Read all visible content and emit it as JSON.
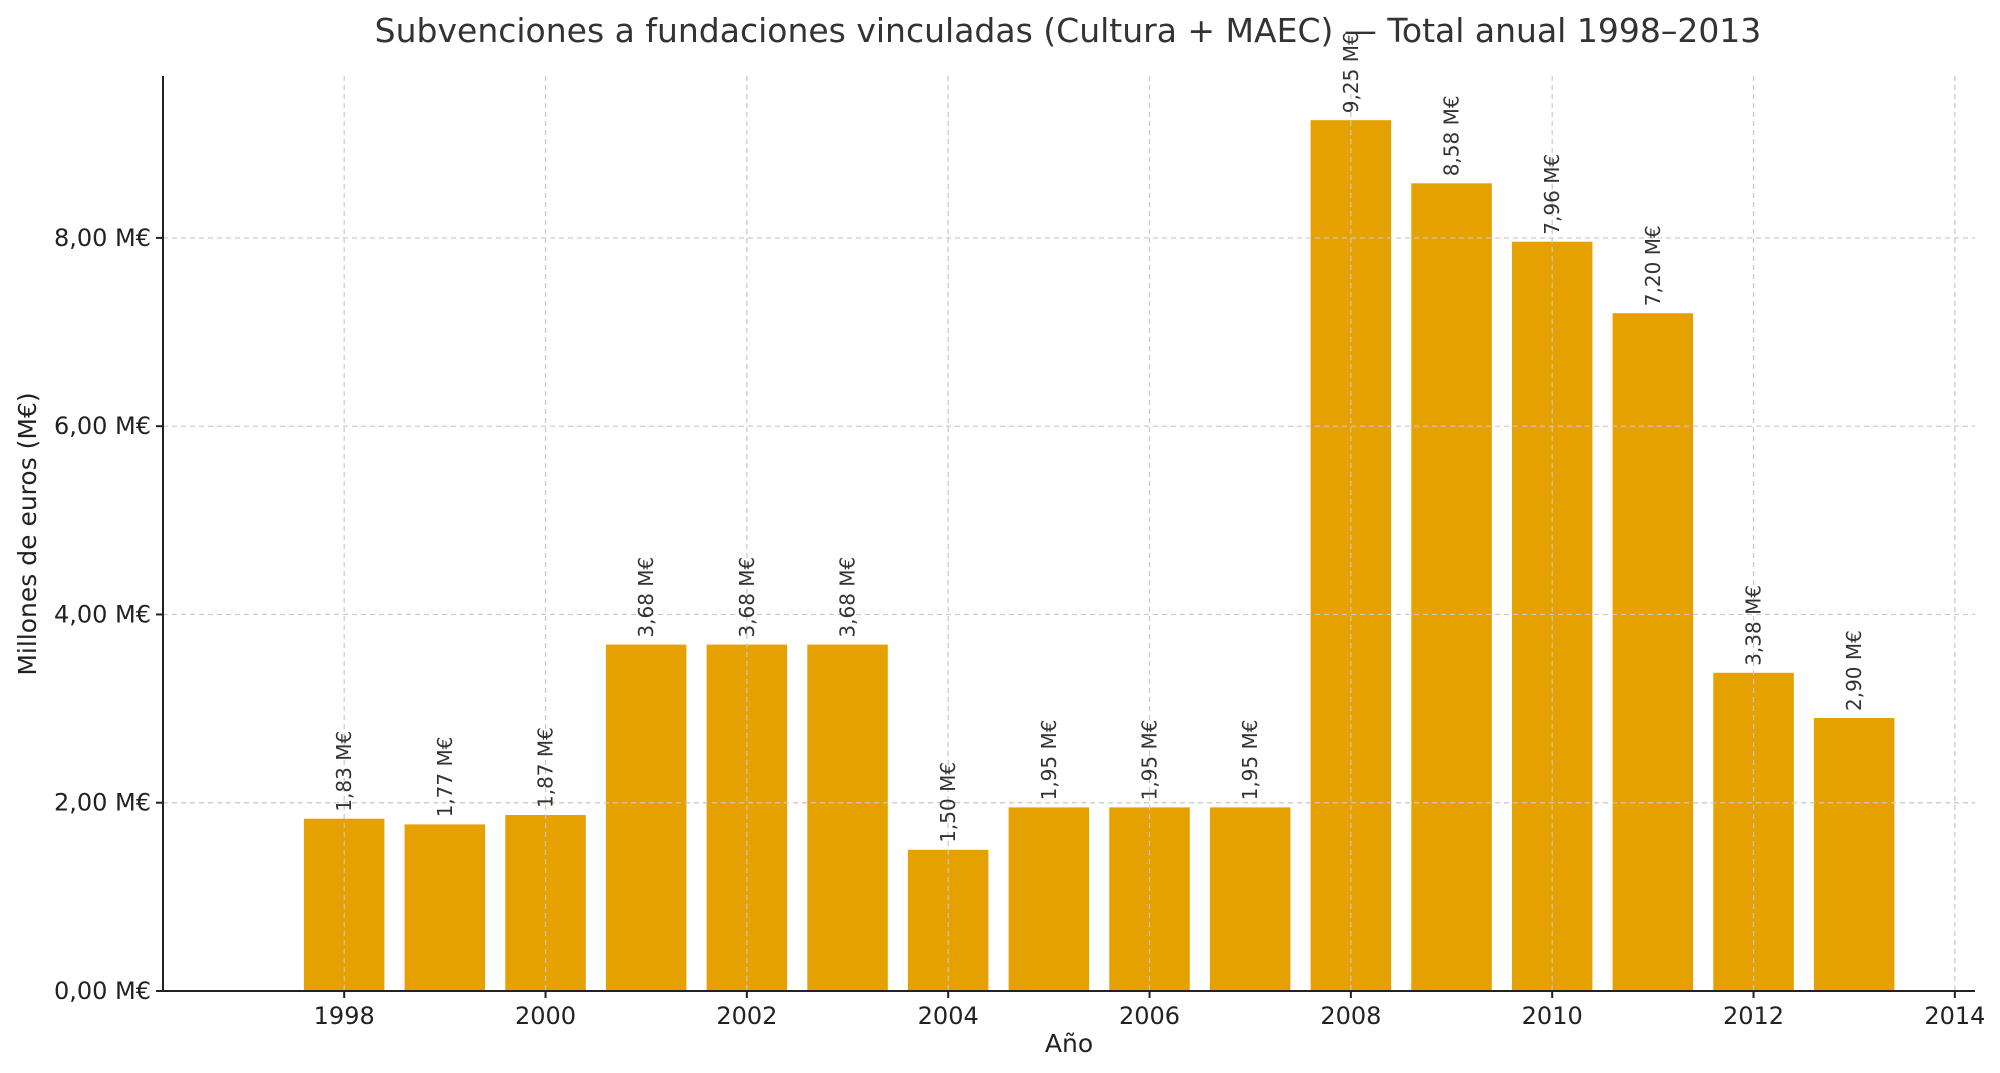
{
  "chart_data": {
    "type": "bar",
    "title": "Subvenciones a fundaciones vinculadas (Cultura + MAEC) — Total anual 1998–2013",
    "xlabel": "Año",
    "ylabel": "Millones de euros (M€)",
    "bar_color": "#e4a100",
    "x": [
      1998,
      1999,
      2000,
      2001,
      2002,
      2003,
      2004,
      2005,
      2006,
      2007,
      2008,
      2009,
      2010,
      2011,
      2012,
      2013
    ],
    "values": [
      1.83,
      1.77,
      1.87,
      3.68,
      3.68,
      3.68,
      1.5,
      1.95,
      1.95,
      1.95,
      9.25,
      8.58,
      7.96,
      7.2,
      3.38,
      2.9
    ],
    "data_labels": [
      "1,83 M€",
      "1,77 M€",
      "1,87 M€",
      "3,68 M€",
      "3,68 M€",
      "3,68 M€",
      "1,50 M€",
      "1,95 M€",
      "1,95 M€",
      "1,95 M€",
      "9,25 M€",
      "8,58 M€",
      "7,96 M€",
      "7,20 M€",
      "3,38 M€",
      "2,90 M€"
    ],
    "xlim": [
      1996.2,
      2014.2
    ],
    "ylim": [
      0,
      9.72
    ],
    "x_ticks": [
      1998,
      2000,
      2002,
      2004,
      2006,
      2008,
      2010,
      2012,
      2014
    ],
    "x_tick_labels": [
      "1998",
      "2000",
      "2002",
      "2004",
      "2006",
      "2008",
      "2010",
      "2012",
      "2014"
    ],
    "y_ticks": [
      0,
      2,
      4,
      6,
      8
    ],
    "y_tick_labels": [
      "0,00 M€",
      "2,00 M€",
      "4,00 M€",
      "6,00 M€",
      "8,00 M€"
    ],
    "grid": true,
    "legend": "none"
  }
}
